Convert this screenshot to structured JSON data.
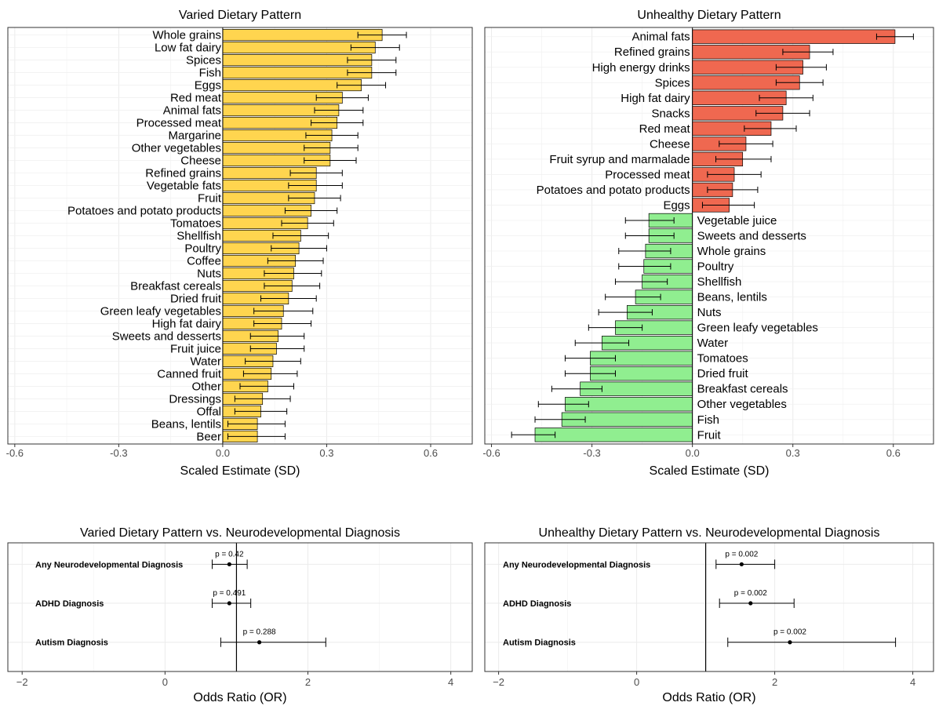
{
  "chart_data": [
    {
      "type": "bar",
      "orientation": "horizontal",
      "title": "Varied Dietary Pattern",
      "xlabel": "Scaled Estimate (SD)",
      "xlim": [
        -0.62,
        0.72
      ],
      "xticks": [
        -0.6,
        -0.3,
        0.0,
        0.3,
        0.6
      ],
      "xtick_labels": [
        "-0.6",
        "-0.3",
        "0.0",
        "0.3",
        "0.6"
      ],
      "grid": true,
      "colors": {
        "positive": "#FFD54F",
        "negative": "#90EE90"
      },
      "categories": [
        "Whole grains",
        "Low fat dairy",
        "Spices",
        "Fish",
        "Eggs",
        "Red meat",
        "Animal fats",
        "Processed meat",
        "Margarine",
        "Other vegetables",
        "Cheese",
        "Refined grains",
        "Vegetable fats",
        "Fruit",
        "Potatoes and potato products",
        "Tomatoes",
        "Shellfish",
        "Poultry",
        "Coffee",
        "Nuts",
        "Breakfast cereals",
        "Dried fruit",
        "Green leafy vegetables",
        "High fat dairy",
        "Sweets and desserts",
        "Fruit juice",
        "Water",
        "Canned fruit",
        "Other",
        "Dressings",
        "Offal",
        "Beans, lentils",
        "Beer"
      ],
      "values": [
        0.46,
        0.44,
        0.43,
        0.43,
        0.4,
        0.345,
        0.335,
        0.33,
        0.315,
        0.31,
        0.31,
        0.27,
        0.27,
        0.265,
        0.255,
        0.245,
        0.225,
        0.22,
        0.21,
        0.205,
        0.2,
        0.19,
        0.175,
        0.17,
        0.16,
        0.155,
        0.145,
        0.14,
        0.13,
        0.115,
        0.11,
        0.1,
        0.1
      ],
      "ci_low": [
        0.39,
        0.37,
        0.36,
        0.36,
        0.33,
        0.27,
        0.265,
        0.255,
        0.24,
        0.235,
        0.235,
        0.195,
        0.19,
        0.19,
        0.18,
        0.17,
        0.145,
        0.14,
        0.13,
        0.12,
        0.12,
        0.11,
        0.09,
        0.09,
        0.08,
        0.08,
        0.065,
        0.06,
        0.05,
        0.035,
        0.035,
        0.015,
        0.015
      ],
      "ci_high": [
        0.53,
        0.51,
        0.5,
        0.5,
        0.47,
        0.42,
        0.405,
        0.405,
        0.39,
        0.39,
        0.385,
        0.345,
        0.345,
        0.34,
        0.33,
        0.32,
        0.305,
        0.3,
        0.29,
        0.285,
        0.28,
        0.27,
        0.26,
        0.255,
        0.235,
        0.235,
        0.225,
        0.215,
        0.205,
        0.195,
        0.185,
        0.18,
        0.18
      ],
      "label_side": "left"
    },
    {
      "type": "bar",
      "orientation": "horizontal",
      "title": "Unhealthy Dietary Pattern",
      "xlabel": "Scaled Estimate (SD)",
      "xlim": [
        -0.62,
        0.72
      ],
      "xticks": [
        -0.6,
        -0.3,
        0.0,
        0.3,
        0.6
      ],
      "xtick_labels": [
        "-0.6",
        "-0.3",
        "0.0",
        "0.3",
        "0.6"
      ],
      "grid": true,
      "colors": {
        "positive": "#EF6850",
        "negative": "#90EE90"
      },
      "categories": [
        "Animal fats",
        "Refined grains",
        "High energy drinks",
        "Spices",
        "High fat dairy",
        "Snacks",
        "Red meat",
        "Cheese",
        "Fruit syrup and marmalade",
        "Processed meat",
        "Potatoes and potato products",
        "Eggs",
        "Vegetable juice",
        "Sweets and desserts",
        "Whole grains",
        "Poultry",
        "Shellfish",
        "Beans, lentils",
        "Nuts",
        "Green leafy vegetables",
        "Water",
        "Tomatoes",
        "Dried fruit",
        "Breakfast cereals",
        "Other vegetables",
        "Fish",
        "Fruit"
      ],
      "values": [
        0.605,
        0.35,
        0.33,
        0.32,
        0.28,
        0.27,
        0.235,
        0.16,
        0.15,
        0.125,
        0.12,
        0.11,
        -0.13,
        -0.13,
        -0.14,
        -0.145,
        -0.15,
        -0.17,
        -0.195,
        -0.23,
        -0.27,
        -0.305,
        -0.305,
        -0.335,
        -0.38,
        -0.39,
        -0.47
      ],
      "ci_low": [
        0.55,
        0.27,
        0.25,
        0.25,
        0.2,
        0.19,
        0.155,
        0.08,
        0.07,
        0.045,
        0.045,
        0.03,
        -0.2,
        -0.2,
        -0.22,
        -0.22,
        -0.23,
        -0.26,
        -0.28,
        -0.31,
        -0.35,
        -0.38,
        -0.38,
        -0.42,
        -0.46,
        -0.47,
        -0.54
      ],
      "ci_high": [
        0.66,
        0.42,
        0.4,
        0.39,
        0.36,
        0.35,
        0.31,
        0.24,
        0.235,
        0.205,
        0.195,
        0.185,
        -0.055,
        -0.055,
        -0.065,
        -0.065,
        -0.075,
        -0.095,
        -0.12,
        -0.15,
        -0.19,
        -0.23,
        -0.23,
        -0.27,
        -0.31,
        -0.32,
        -0.41
      ],
      "label_side": "axis"
    },
    {
      "type": "scatter",
      "subtype": "forest",
      "title": "Varied Dietary Pattern vs. Neurodevelopmental Diagnosis",
      "xlabel": "Odds Ratio (OR)",
      "xlim": [
        -2.2,
        4.3
      ],
      "xticks": [
        -2,
        0,
        2,
        4
      ],
      "xtick_labels": [
        "−2",
        "0",
        "2",
        "4"
      ],
      "reference_line": 1,
      "grid": true,
      "categories": [
        "Any Neurodevelopmental Diagnosis",
        "ADHD Diagnosis",
        "Autism Diagnosis"
      ],
      "values": [
        0.9,
        0.9,
        1.32
      ],
      "ci_low": [
        0.66,
        0.66,
        0.78
      ],
      "ci_high": [
        1.15,
        1.2,
        2.25
      ],
      "p_labels": [
        "p = 0.42",
        "p = 0.491",
        "p = 0.288"
      ]
    },
    {
      "type": "scatter",
      "subtype": "forest",
      "title": "Unhealthy Dietary Pattern vs. Neurodevelopmental Diagnosis",
      "xlabel": "Odds Ratio (OR)",
      "xlim": [
        -2.2,
        4.3
      ],
      "xticks": [
        -2,
        0,
        2,
        4
      ],
      "xtick_labels": [
        "−2",
        "0",
        "2",
        "4"
      ],
      "reference_line": 1,
      "grid": true,
      "categories": [
        "Any Neurodevelopmental Diagnosis",
        "ADHD Diagnosis",
        "Autism Diagnosis"
      ],
      "values": [
        1.52,
        1.65,
        2.22
      ],
      "ci_low": [
        1.15,
        1.2,
        1.32
      ],
      "ci_high": [
        2.0,
        2.28,
        3.75
      ],
      "p_labels": [
        "p = 0.002",
        "p = 0.002",
        "p = 0.002"
      ]
    }
  ]
}
